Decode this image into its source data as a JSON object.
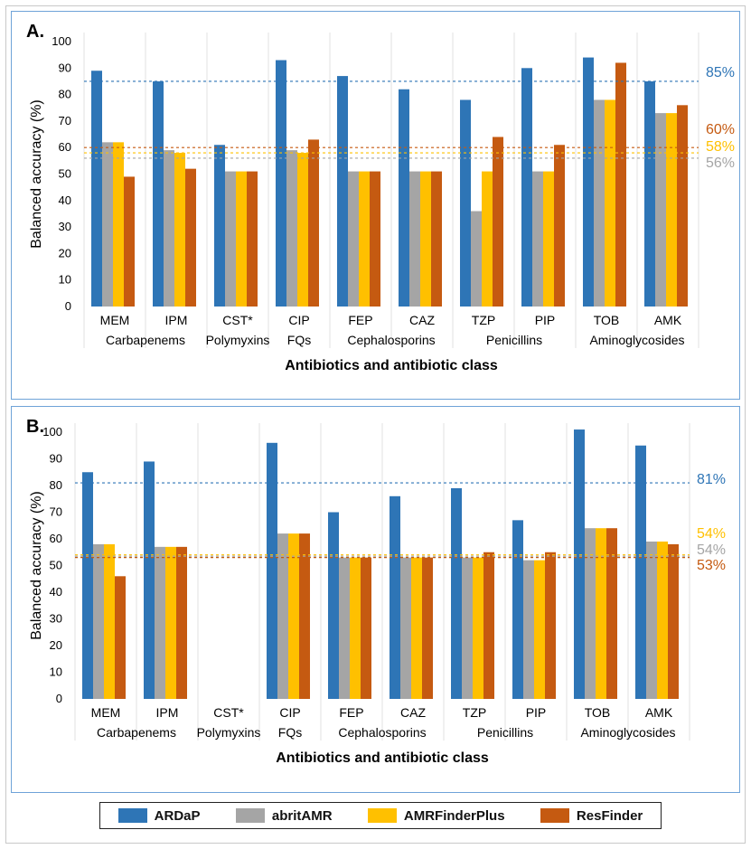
{
  "chart_data": [
    {
      "type": "bar",
      "panel_label": "A.",
      "ylabel": "Balanced accuracy (%)",
      "xlabel": "Antibiotics and antibiotic class",
      "ylim": [
        0,
        100
      ],
      "yticks": [
        0,
        10,
        20,
        30,
        40,
        50,
        60,
        70,
        80,
        90,
        100
      ],
      "categories": [
        "MEM",
        "IPM",
        "CST*",
        "CIP",
        "FEP",
        "CAZ",
        "TZP",
        "PIP",
        "TOB",
        "AMK"
      ],
      "classes": [
        {
          "label": "Carbapenems",
          "categories": [
            "MEM",
            "IPM"
          ]
        },
        {
          "label": "Polymyxins",
          "categories": [
            "CST*"
          ]
        },
        {
          "label": "FQs",
          "categories": [
            "CIP"
          ]
        },
        {
          "label": "Cephalosporins",
          "categories": [
            "FEP",
            "CAZ"
          ]
        },
        {
          "label": "Penicillins",
          "categories": [
            "TZP",
            "PIP"
          ]
        },
        {
          "label": "Aminoglycosides",
          "categories": [
            "TOB",
            "AMK"
          ]
        }
      ],
      "series": [
        {
          "name": "ARDaP",
          "values": [
            89,
            85,
            61,
            93,
            87,
            82,
            78,
            90,
            94,
            85
          ]
        },
        {
          "name": "abritAMR",
          "values": [
            62,
            59,
            51,
            59,
            51,
            51,
            36,
            51,
            78,
            73
          ]
        },
        {
          "name": "AMRFinderPlus",
          "values": [
            62,
            58,
            51,
            58,
            51,
            51,
            51,
            51,
            78,
            73
          ]
        },
        {
          "name": "ResFinder",
          "values": [
            49,
            52,
            51,
            63,
            51,
            51,
            64,
            61,
            92,
            76
          ]
        }
      ],
      "reference_lines": [
        {
          "series": "ARDaP",
          "value": 85,
          "label": "85%"
        },
        {
          "series": "ResFinder",
          "value": 60,
          "label": "60%"
        },
        {
          "series": "AMRFinderPlus",
          "value": 58,
          "label": "58%"
        },
        {
          "series": "abritAMR",
          "value": 56,
          "label": "56%"
        }
      ]
    },
    {
      "type": "bar",
      "panel_label": "B.",
      "ylabel": "Balanced accuracy (%)",
      "xlabel": "Antibiotics and antibiotic class",
      "ylim": [
        0,
        100
      ],
      "yticks": [
        0,
        10,
        20,
        30,
        40,
        50,
        60,
        70,
        80,
        90,
        100
      ],
      "categories": [
        "MEM",
        "IPM",
        "CST*",
        "CIP",
        "FEP",
        "CAZ",
        "TZP",
        "PIP",
        "TOB",
        "AMK"
      ],
      "classes": [
        {
          "label": "Carbapenems",
          "categories": [
            "MEM",
            "IPM"
          ]
        },
        {
          "label": "Polymyxins",
          "categories": [
            "CST*"
          ]
        },
        {
          "label": "FQs",
          "categories": [
            "CIP"
          ]
        },
        {
          "label": "Cephalosporins",
          "categories": [
            "FEP",
            "CAZ"
          ]
        },
        {
          "label": "Penicillins",
          "categories": [
            "TZP",
            "PIP"
          ]
        },
        {
          "label": "Aminoglycosides",
          "categories": [
            "TOB",
            "AMK"
          ]
        }
      ],
      "series": [
        {
          "name": "ARDaP",
          "values": [
            85,
            89,
            null,
            96,
            70,
            76,
            79,
            67,
            101,
            95
          ]
        },
        {
          "name": "abritAMR",
          "values": [
            58,
            57,
            null,
            62,
            53,
            53,
            53,
            52,
            64,
            59
          ]
        },
        {
          "name": "AMRFinderPlus",
          "values": [
            58,
            57,
            null,
            62,
            53,
            53,
            53,
            52,
            64,
            59
          ]
        },
        {
          "name": "ResFinder",
          "values": [
            46,
            57,
            null,
            62,
            53,
            53,
            55,
            55,
            64,
            58
          ]
        }
      ],
      "reference_lines": [
        {
          "series": "ARDaP",
          "value": 81,
          "label": "81%"
        },
        {
          "series": "AMRFinderPlus",
          "value": 54,
          "label": "54%"
        },
        {
          "series": "abritAMR",
          "value": 54,
          "label": "54%"
        },
        {
          "series": "ResFinder",
          "value": 53,
          "label": "53%"
        }
      ]
    }
  ],
  "legend": [
    {
      "name": "ARDaP",
      "color": "#2e75b6"
    },
    {
      "name": "abritAMR",
      "color": "#a5a5a5"
    },
    {
      "name": "AMRFinderPlus",
      "color": "#ffc000"
    },
    {
      "name": "ResFinder",
      "color": "#c55a11"
    }
  ]
}
